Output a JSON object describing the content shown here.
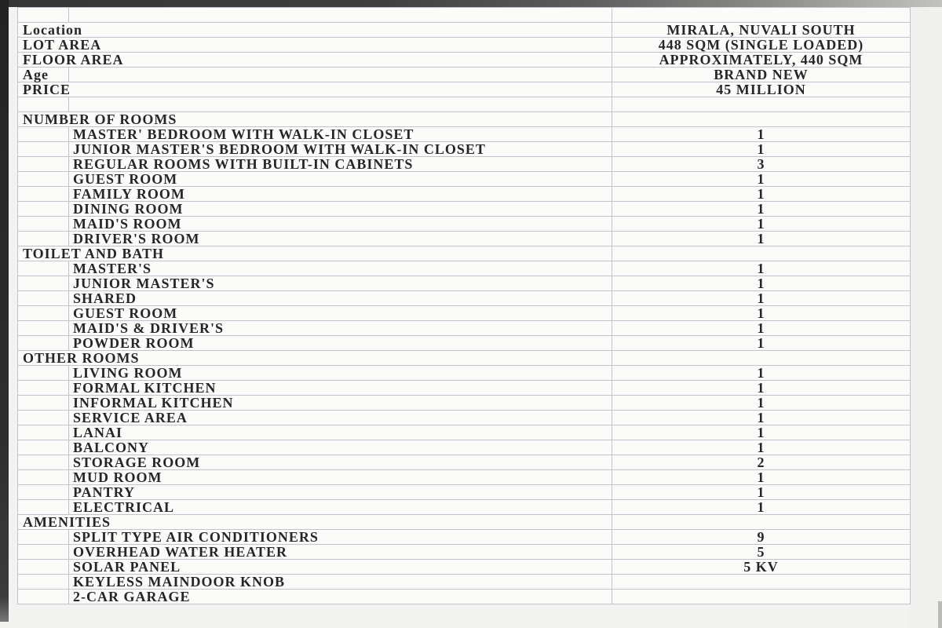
{
  "colors": {
    "grid_border": "#c3c3cd",
    "cell_background": "#fbfbf9",
    "text": "#262626",
    "photo_edge": "#2e2e2e"
  },
  "table": {
    "columns": [
      "gutter",
      "label",
      "value"
    ],
    "rows": [
      {
        "label": "",
        "value": "",
        "indent": 0
      },
      {
        "label": "Location",
        "value": "MIRALA, NUVALI SOUTH",
        "indent": 0
      },
      {
        "label": "LOT AREA",
        "value": "448 SQM (SINGLE LOADED)",
        "indent": 0
      },
      {
        "label": "FLOOR AREA",
        "value": "APPROXIMATELY, 440 SQM",
        "indent": 0
      },
      {
        "label": "Age",
        "value": "BRAND NEW",
        "indent": 0
      },
      {
        "label": "PRICE",
        "value": "45 MILLION",
        "indent": 0
      },
      {
        "label": "",
        "value": "",
        "indent": 0
      },
      {
        "label": "NUMBER OF ROOMS",
        "value": "",
        "indent": 0
      },
      {
        "label": "MASTER' BEDROOM WITH WALK-IN CLOSET",
        "value": "1",
        "indent": 1
      },
      {
        "label": "JUNIOR MASTER'S BEDROOM WITH WALK-IN CLOSET",
        "value": "1",
        "indent": 1
      },
      {
        "label": "REGULAR ROOMS WITH BUILT-IN CABINETS",
        "value": "3",
        "indent": 1
      },
      {
        "label": "GUEST ROOM",
        "value": "1",
        "indent": 1
      },
      {
        "label": "FAMILY ROOM",
        "value": "1",
        "indent": 1
      },
      {
        "label": "DINING ROOM",
        "value": "1",
        "indent": 1
      },
      {
        "label": "MAID'S ROOM",
        "value": "1",
        "indent": 1
      },
      {
        "label": "DRIVER'S ROOM",
        "value": "1",
        "indent": 1
      },
      {
        "label": "TOILET AND BATH",
        "value": "",
        "indent": 0
      },
      {
        "label": "MASTER'S",
        "value": "1",
        "indent": 1
      },
      {
        "label": "JUNIOR MASTER'S",
        "value": "1",
        "indent": 1
      },
      {
        "label": "SHARED",
        "value": "1",
        "indent": 1
      },
      {
        "label": "GUEST ROOM",
        "value": "1",
        "indent": 1
      },
      {
        "label": "MAID'S & DRIVER'S",
        "value": "1",
        "indent": 1
      },
      {
        "label": "POWDER ROOM",
        "value": "1",
        "indent": 1
      },
      {
        "label": "OTHER ROOMS",
        "value": "",
        "indent": 0
      },
      {
        "label": "LIVING ROOM",
        "value": "1",
        "indent": 1
      },
      {
        "label": "FORMAL KITCHEN",
        "value": "1",
        "indent": 1
      },
      {
        "label": "INFORMAL KITCHEN",
        "value": "1",
        "indent": 1
      },
      {
        "label": "SERVICE AREA",
        "value": "1",
        "indent": 1
      },
      {
        "label": "LANAI",
        "value": "1",
        "indent": 1
      },
      {
        "label": "BALCONY",
        "value": "1",
        "indent": 1
      },
      {
        "label": "STORAGE ROOM",
        "value": "2",
        "indent": 1
      },
      {
        "label": "MUD ROOM",
        "value": "1",
        "indent": 1
      },
      {
        "label": "PANTRY",
        "value": "1",
        "indent": 1
      },
      {
        "label": "ELECTRICAL",
        "value": "1",
        "indent": 1
      },
      {
        "label": "AMENITIES",
        "value": "",
        "indent": 0
      },
      {
        "label": "SPLIT TYPE AIR CONDITIONERS",
        "value": "9",
        "indent": 1
      },
      {
        "label": "OVERHEAD WATER HEATER",
        "value": "5",
        "indent": 1
      },
      {
        "label": "SOLAR PANEL",
        "value": "5 KV",
        "indent": 1
      },
      {
        "label": "KEYLESS MAINDOOR KNOB",
        "value": "",
        "indent": 1
      },
      {
        "label": "2-CAR GARAGE",
        "value": "",
        "indent": 1
      }
    ]
  }
}
